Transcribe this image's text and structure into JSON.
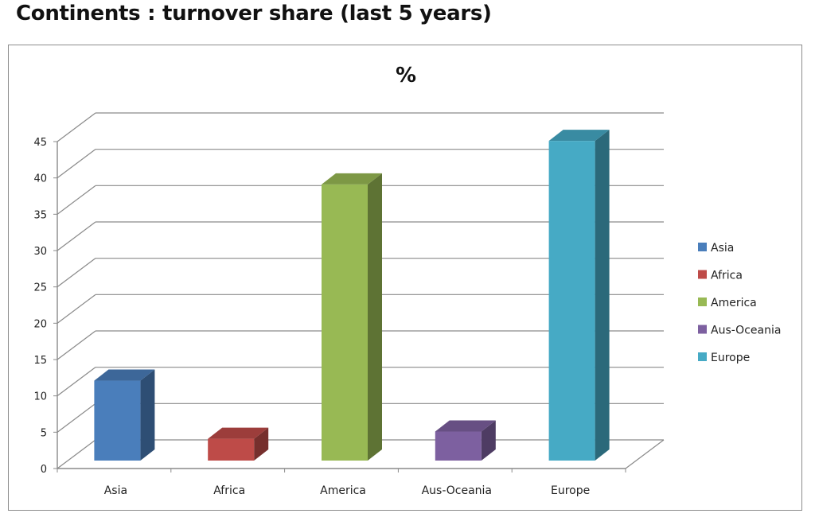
{
  "page": {
    "title": "Continents : turnover share (last 5 years)"
  },
  "chart_data": {
    "type": "bar",
    "title": "%",
    "categories": [
      "Asia",
      "Africa",
      "America",
      "Aus-Oceania",
      "Europe"
    ],
    "values": [
      11,
      3,
      38,
      4,
      44
    ],
    "ylim": [
      0,
      45
    ],
    "yticks": [
      0,
      5,
      10,
      15,
      20,
      25,
      30,
      35,
      40,
      45
    ],
    "grid": true,
    "style": "3d-column",
    "legend_position": "right",
    "colors": [
      "#4a7ebb",
      "#be4b48",
      "#98b954",
      "#7d60a0",
      "#46aac5"
    ],
    "xlabel": "",
    "ylabel": ""
  }
}
